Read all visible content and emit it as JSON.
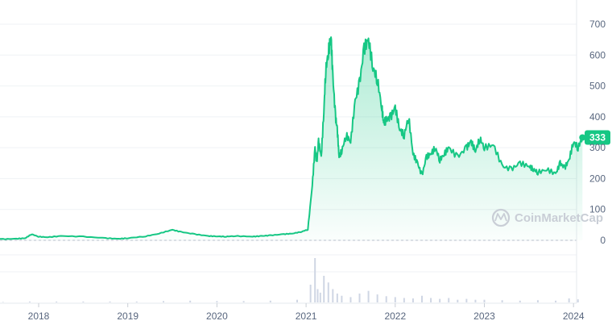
{
  "watermark": {
    "text": "CoinMarketCap",
    "icon": "coinmarketcap-logo-icon"
  },
  "colors": {
    "line": "#16c784",
    "fill_top": "#16c784",
    "grid": "#eff2f5",
    "axis_text": "#58667e",
    "volume": "#cfd6e4",
    "badge": "#16c784"
  },
  "chart_data": {
    "type": "area",
    "title": "",
    "xlabel": "",
    "ylabel": "",
    "ylim": [
      0,
      750
    ],
    "grid": true,
    "y_ticks": [
      "0",
      "100",
      "200",
      "300",
      "400",
      "500",
      "600",
      "700"
    ],
    "x_ticks": [
      "2018",
      "2019",
      "2020",
      "2021",
      "2022",
      "2023",
      "2024"
    ],
    "current_price": {
      "value": 333,
      "label": "333"
    },
    "series": [
      {
        "x": [
          2017.25,
          2017.4,
          2017.6,
          2017.75,
          2017.85,
          2017.92,
          2018.0,
          2018.1,
          2018.25,
          2018.5,
          2018.75,
          2018.9,
          2019.0,
          2019.2,
          2019.35,
          2019.5,
          2019.6,
          2019.75,
          2019.9,
          2020.0,
          2020.1,
          2020.2,
          2020.4,
          2020.5,
          2020.6,
          2020.75,
          2020.85,
          2020.95,
          2021.02,
          2021.07,
          2021.1,
          2021.12,
          2021.14,
          2021.17,
          2021.2,
          2021.22,
          2021.25,
          2021.28,
          2021.3,
          2021.33,
          2021.35,
          2021.37,
          2021.4,
          2021.45,
          2021.5,
          2021.55,
          2021.6,
          2021.65,
          2021.7,
          2021.75,
          2021.8,
          2021.85,
          2021.87,
          2021.9,
          2021.95,
          2022.0,
          2022.05,
          2022.1,
          2022.15,
          2022.2,
          2022.25,
          2022.3,
          2022.35,
          2022.4,
          2022.45,
          2022.5,
          2022.55,
          2022.6,
          2022.7,
          2022.8,
          2022.85,
          2022.9,
          2022.95,
          2023.0,
          2023.1,
          2023.2,
          2023.3,
          2023.4,
          2023.5,
          2023.55,
          2023.6,
          2023.7,
          2023.8,
          2023.85,
          2023.9,
          2023.95,
          2024.0,
          2024.05,
          2024.1
        ],
        "values": [
          2,
          3,
          4,
          5,
          7,
          20,
          12,
          10,
          14,
          12,
          7,
          5,
          7,
          13,
          22,
          34,
          27,
          20,
          14,
          13,
          12,
          14,
          12,
          14,
          16,
          20,
          22,
          28,
          35,
          180,
          300,
          250,
          320,
          270,
          420,
          550,
          610,
          660,
          530,
          400,
          360,
          270,
          290,
          340,
          320,
          450,
          510,
          620,
          650,
          560,
          520,
          430,
          380,
          390,
          400,
          430,
          360,
          340,
          400,
          280,
          250,
          210,
          270,
          280,
          300,
          260,
          280,
          300,
          270,
          300,
          320,
          290,
          330,
          300,
          310,
          240,
          230,
          250,
          240,
          230,
          220,
          230,
          215,
          250,
          235,
          260,
          320,
          300,
          333
        ]
      }
    ],
    "volume": {
      "x": [
        2017.3,
        2017.6,
        2017.9,
        2018.2,
        2018.5,
        2018.8,
        2019.1,
        2019.4,
        2019.7,
        2020.0,
        2020.3,
        2020.6,
        2020.9,
        2021.05,
        2021.1,
        2021.13,
        2021.16,
        2021.2,
        2021.25,
        2021.3,
        2021.35,
        2021.4,
        2021.5,
        2021.6,
        2021.7,
        2021.8,
        2021.9,
        2022.0,
        2022.1,
        2022.2,
        2022.3,
        2022.4,
        2022.5,
        2022.6,
        2022.7,
        2022.8,
        2022.9,
        2023.0,
        2023.2,
        2023.4,
        2023.6,
        2023.8,
        2023.95,
        2024.05
      ],
      "values": [
        1,
        1,
        2,
        2,
        2,
        2,
        2,
        3,
        4,
        3,
        3,
        4,
        6,
        40,
        100,
        30,
        22,
        60,
        45,
        30,
        20,
        15,
        12,
        20,
        26,
        18,
        14,
        12,
        10,
        9,
        15,
        10,
        8,
        10,
        6,
        8,
        6,
        6,
        5,
        4,
        5,
        4,
        9,
        7
      ]
    }
  }
}
